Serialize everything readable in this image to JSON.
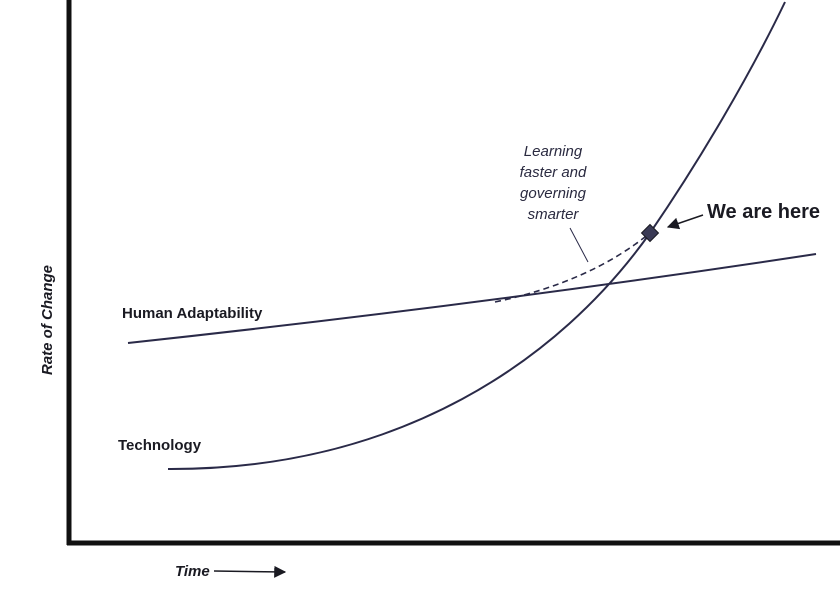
{
  "axes": {
    "y_label": "Rate of Change",
    "x_label": "Time"
  },
  "curves": {
    "human": "Human Adaptability",
    "technology": "Technology"
  },
  "annotation": {
    "lines": [
      "Learning",
      "faster and",
      "governing",
      "smarter"
    ]
  },
  "marker": {
    "label": "We are here"
  }
}
